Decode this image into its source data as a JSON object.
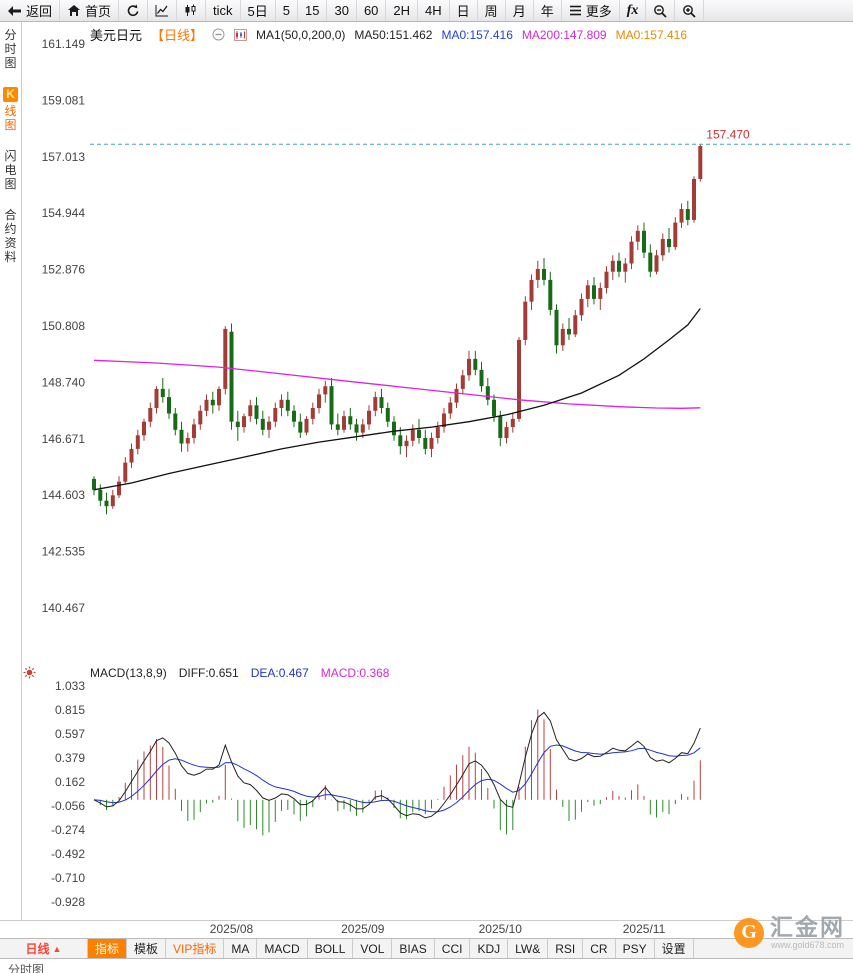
{
  "toolbar": {
    "items": [
      {
        "id": "back",
        "label": "返回",
        "icon": "back-icon"
      },
      {
        "id": "home",
        "label": "首页",
        "icon": "home-icon"
      },
      {
        "id": "refresh",
        "label": "",
        "icon": "refresh-icon"
      },
      {
        "id": "line-chart",
        "label": "",
        "icon": "line-chart-icon"
      },
      {
        "id": "candle-chart",
        "label": "",
        "icon": "candle-chart-icon"
      },
      {
        "id": "tick",
        "label": "tick"
      },
      {
        "id": "5d",
        "label": "5日"
      },
      {
        "id": "m5",
        "label": "5"
      },
      {
        "id": "m15",
        "label": "15"
      },
      {
        "id": "m30",
        "label": "30"
      },
      {
        "id": "m60",
        "label": "60"
      },
      {
        "id": "h2",
        "label": "2H"
      },
      {
        "id": "h4",
        "label": "4H"
      },
      {
        "id": "day",
        "label": "日"
      },
      {
        "id": "week",
        "label": "周"
      },
      {
        "id": "month",
        "label": "月"
      },
      {
        "id": "year",
        "label": "年"
      },
      {
        "id": "more",
        "label": "更多",
        "icon": "menu-icon"
      },
      {
        "id": "fx",
        "label": "fx"
      },
      {
        "id": "zoom-out",
        "label": "",
        "icon": "zoom-out-icon"
      },
      {
        "id": "zoom-in",
        "label": "",
        "icon": "zoom-in-icon"
      }
    ]
  },
  "sidebar": {
    "items": [
      {
        "id": "time-chart",
        "label": "分时图",
        "active": false
      },
      {
        "id": "kline-chart",
        "label": "K线图",
        "active": true
      },
      {
        "id": "lightning-chart",
        "label": "闪电图",
        "active": false
      },
      {
        "id": "contract-info",
        "label": "合约资料",
        "active": false
      }
    ]
  },
  "chart_header": {
    "symbol": "美元日元",
    "period": "【日线】",
    "ma_label": "MA1(50,0,200,0)",
    "ma50": "MA50:151.462",
    "ma0_blue": "MA0:157.416",
    "ma200": "MA200:147.809",
    "ma0_orange": "MA0:157.416"
  },
  "price_line": {
    "label": "157.470"
  },
  "macd_header": {
    "title": "MACD(13,8,9)",
    "diff": "DIFF:0.651",
    "dea": "DEA:0.467",
    "macd": "MACD:0.368"
  },
  "bottom_bar": {
    "period": "日线",
    "tabs": [
      {
        "id": "zhibiao",
        "label": "指标",
        "active": true
      },
      {
        "id": "moban",
        "label": "模板"
      },
      {
        "id": "vip",
        "label": "VIP指标",
        "vip": true
      },
      {
        "id": "ma",
        "label": "MA"
      },
      {
        "id": "macd",
        "label": "MACD"
      },
      {
        "id": "boll",
        "label": "BOLL"
      },
      {
        "id": "vol",
        "label": "VOL"
      },
      {
        "id": "bias",
        "label": "BIAS"
      },
      {
        "id": "cci",
        "label": "CCI"
      },
      {
        "id": "kdj",
        "label": "KDJ"
      },
      {
        "id": "lwr",
        "label": "LW&"
      },
      {
        "id": "rsi",
        "label": "RSI"
      },
      {
        "id": "cr",
        "label": "CR"
      },
      {
        "id": "psy",
        "label": "PSY"
      },
      {
        "id": "shezhi",
        "label": "设置"
      }
    ]
  },
  "partial_row": {
    "label": "分时图"
  },
  "watermark": {
    "name": "汇金网",
    "url": "www.gold678.com"
  },
  "chart_data": {
    "type": "candlestick",
    "title": "美元日元 日线 (USD/JPY Daily)",
    "indicator": "MACD",
    "y_axis_labels": [
      "161.149",
      "159.081",
      "157.013",
      "154.944",
      "152.876",
      "150.808",
      "148.740",
      "146.671",
      "144.603",
      "142.535",
      "140.467"
    ],
    "macd_axis_labels": [
      "1.033",
      "0.815",
      "0.597",
      "0.379",
      "0.162",
      "-0.056",
      "-0.274",
      "-0.492",
      "-0.710",
      "-0.928"
    ],
    "x_labels": [
      "2025/08",
      "2025/09",
      "2025/10",
      "2025/11"
    ],
    "month_start_indices": [
      22,
      43,
      65,
      88
    ],
    "current_price": 157.47,
    "macd_values": {
      "diff": 0.651,
      "dea": 0.467,
      "macd": 0.368
    },
    "ma50_points": [
      [
        0,
        144.8
      ],
      [
        6,
        145.05
      ],
      [
        12,
        145.4
      ],
      [
        18,
        145.7
      ],
      [
        24,
        146.0
      ],
      [
        30,
        146.3
      ],
      [
        36,
        146.55
      ],
      [
        42,
        146.75
      ],
      [
        48,
        146.95
      ],
      [
        54,
        147.1
      ],
      [
        60,
        147.3
      ],
      [
        66,
        147.55
      ],
      [
        72,
        147.9
      ],
      [
        78,
        148.35
      ],
      [
        84,
        149.0
      ],
      [
        88,
        149.6
      ],
      [
        92,
        150.3
      ],
      [
        95,
        150.85
      ],
      [
        97,
        151.45
      ]
    ],
    "ma200_points": [
      [
        0,
        149.55
      ],
      [
        10,
        149.45
      ],
      [
        20,
        149.3
      ],
      [
        30,
        149.05
      ],
      [
        40,
        148.8
      ],
      [
        50,
        148.55
      ],
      [
        60,
        148.3
      ],
      [
        68,
        148.1
      ],
      [
        76,
        147.95
      ],
      [
        84,
        147.85
      ],
      [
        90,
        147.8
      ],
      [
        94,
        147.79
      ],
      [
        97,
        147.81
      ]
    ],
    "candles": [
      [
        145.2,
        145.3,
        144.6,
        144.8
      ],
      [
        144.8,
        145.0,
        144.2,
        144.4
      ],
      [
        144.4,
        144.7,
        143.9,
        144.2
      ],
      [
        144.2,
        144.8,
        144.1,
        144.6
      ],
      [
        144.6,
        145.3,
        144.5,
        145.1
      ],
      [
        145.1,
        146.0,
        145.0,
        145.8
      ],
      [
        145.8,
        146.5,
        145.6,
        146.3
      ],
      [
        146.3,
        147.0,
        146.1,
        146.8
      ],
      [
        146.8,
        147.4,
        146.6,
        147.3
      ],
      [
        147.3,
        148.0,
        147.1,
        147.8
      ],
      [
        147.8,
        148.6,
        147.6,
        148.5
      ],
      [
        148.5,
        148.9,
        148.0,
        148.2
      ],
      [
        148.2,
        148.5,
        147.4,
        147.6
      ],
      [
        147.6,
        147.8,
        146.8,
        147.0
      ],
      [
        147.0,
        147.3,
        146.2,
        146.5
      ],
      [
        146.5,
        146.9,
        146.2,
        146.7
      ],
      [
        146.7,
        147.4,
        146.5,
        147.2
      ],
      [
        147.2,
        147.9,
        147.0,
        147.7
      ],
      [
        147.7,
        148.3,
        147.5,
        148.1
      ],
      [
        148.1,
        148.4,
        147.6,
        147.9
      ],
      [
        147.9,
        148.6,
        147.7,
        148.5
      ],
      [
        148.5,
        150.8,
        148.3,
        150.7
      ],
      [
        150.6,
        150.9,
        147.0,
        147.3
      ],
      [
        147.3,
        147.7,
        146.6,
        147.1
      ],
      [
        147.1,
        147.6,
        146.9,
        147.5
      ],
      [
        147.5,
        148.1,
        147.3,
        147.9
      ],
      [
        147.9,
        148.2,
        147.2,
        147.4
      ],
      [
        147.4,
        147.7,
        146.8,
        147.0
      ],
      [
        147.0,
        147.5,
        146.7,
        147.3
      ],
      [
        147.3,
        148.0,
        147.1,
        147.8
      ],
      [
        147.8,
        148.3,
        147.5,
        148.1
      ],
      [
        148.1,
        148.4,
        147.5,
        147.7
      ],
      [
        147.7,
        147.9,
        147.1,
        147.3
      ],
      [
        147.3,
        147.6,
        146.7,
        146.9
      ],
      [
        146.9,
        147.5,
        146.8,
        147.4
      ],
      [
        147.4,
        148.0,
        147.2,
        147.8
      ],
      [
        147.8,
        148.5,
        147.6,
        148.3
      ],
      [
        148.3,
        148.8,
        148.0,
        148.6
      ],
      [
        148.6,
        148.9,
        147.0,
        147.2
      ],
      [
        147.2,
        147.6,
        146.8,
        147.0
      ],
      [
        147.0,
        147.7,
        146.9,
        147.5
      ],
      [
        147.5,
        147.8,
        147.0,
        147.2
      ],
      [
        147.2,
        147.4,
        146.6,
        146.9
      ],
      [
        146.9,
        147.4,
        146.7,
        147.2
      ],
      [
        147.2,
        147.9,
        147.0,
        147.7
      ],
      [
        147.7,
        148.4,
        147.5,
        148.2
      ],
      [
        148.2,
        148.5,
        147.6,
        147.8
      ],
      [
        147.8,
        148.0,
        147.1,
        147.3
      ],
      [
        147.3,
        147.5,
        146.6,
        146.8
      ],
      [
        146.8,
        147.1,
        146.1,
        146.4
      ],
      [
        146.4,
        146.8,
        146.0,
        146.6
      ],
      [
        146.6,
        147.2,
        146.4,
        147.0
      ],
      [
        147.0,
        147.4,
        146.5,
        146.7
      ],
      [
        146.7,
        147.0,
        146.1,
        146.3
      ],
      [
        146.3,
        146.9,
        146.0,
        146.7
      ],
      [
        146.7,
        147.3,
        146.5,
        147.1
      ],
      [
        147.1,
        147.8,
        146.9,
        147.6
      ],
      [
        147.6,
        148.2,
        147.4,
        148.0
      ],
      [
        148.0,
        148.7,
        147.8,
        148.5
      ],
      [
        148.5,
        149.2,
        148.3,
        149.0
      ],
      [
        149.0,
        149.9,
        148.8,
        149.6
      ],
      [
        149.6,
        149.9,
        149.0,
        149.2
      ],
      [
        149.2,
        149.5,
        148.4,
        148.6
      ],
      [
        148.6,
        148.9,
        147.9,
        148.1
      ],
      [
        148.1,
        148.3,
        147.3,
        147.5
      ],
      [
        147.5,
        147.7,
        146.4,
        146.7
      ],
      [
        146.7,
        147.3,
        146.5,
        147.1
      ],
      [
        147.1,
        147.6,
        146.9,
        147.4
      ],
      [
        147.4,
        150.4,
        147.3,
        150.3
      ],
      [
        150.3,
        151.9,
        150.1,
        151.7
      ],
      [
        151.7,
        152.7,
        151.4,
        152.5
      ],
      [
        152.5,
        153.2,
        152.2,
        152.9
      ],
      [
        152.9,
        153.3,
        152.3,
        152.5
      ],
      [
        152.5,
        152.8,
        151.2,
        151.4
      ],
      [
        151.4,
        151.6,
        149.8,
        150.1
      ],
      [
        150.1,
        150.9,
        149.9,
        150.7
      ],
      [
        150.7,
        151.1,
        150.3,
        150.5
      ],
      [
        150.5,
        151.4,
        150.4,
        151.2
      ],
      [
        151.2,
        152.0,
        151.0,
        151.8
      ],
      [
        151.8,
        152.5,
        151.5,
        152.3
      ],
      [
        152.3,
        152.6,
        151.6,
        151.8
      ],
      [
        151.8,
        152.4,
        151.4,
        152.2
      ],
      [
        152.2,
        153.0,
        152.0,
        152.8
      ],
      [
        152.8,
        153.4,
        152.5,
        153.2
      ],
      [
        153.2,
        153.5,
        152.6,
        152.8
      ],
      [
        152.8,
        153.3,
        152.4,
        153.1
      ],
      [
        153.1,
        154.1,
        152.9,
        153.9
      ],
      [
        153.9,
        154.5,
        153.6,
        154.3
      ],
      [
        154.3,
        154.6,
        153.3,
        153.5
      ],
      [
        153.5,
        153.8,
        152.6,
        152.8
      ],
      [
        152.8,
        153.6,
        152.7,
        153.4
      ],
      [
        153.4,
        154.2,
        153.2,
        154.0
      ],
      [
        154.0,
        154.4,
        153.5,
        153.7
      ],
      [
        153.7,
        154.8,
        153.6,
        154.6
      ],
      [
        154.6,
        155.3,
        154.4,
        155.1
      ],
      [
        155.1,
        155.4,
        154.5,
        154.7
      ],
      [
        154.7,
        156.3,
        154.6,
        156.2
      ],
      [
        156.2,
        157.47,
        156.1,
        157.41
      ]
    ],
    "colors": {
      "up": "#a33c36",
      "down": "#176b17",
      "ma50": "#111111",
      "ma200": "#e020e0",
      "diff": "#222222",
      "dea": "#2233cc",
      "macd_up": "#b84141",
      "macd_down": "#2e8b2e",
      "price_line": "#4aa0b5",
      "price_label": "#d03030",
      "accent_orange": "#ff8000"
    }
  }
}
